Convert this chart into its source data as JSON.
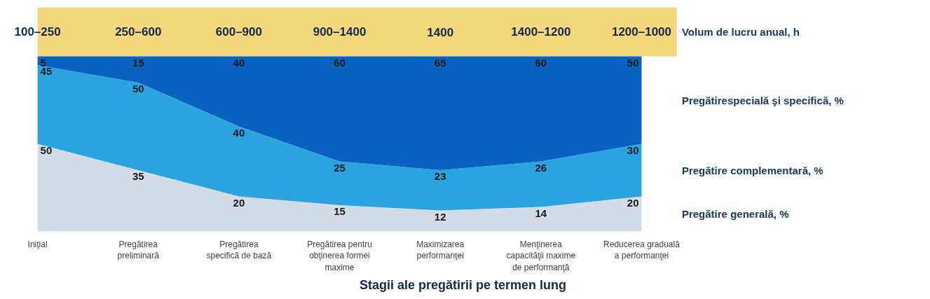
{
  "chart_data": {
    "type": "area",
    "stacked": true,
    "data_labels": true,
    "grid": false,
    "tick_labels": "x",
    "xlabel": "Stagii ale pregătirii pe termen lung",
    "categories": [
      "Iniţial",
      "Pregătirea preliminară",
      "Pregătirea specifică de bază",
      "Pregătirea pentru obţinerea formei maxime",
      "Maximizarea performanţei",
      "Menţinerea capacităţii maxime de performanţă",
      "Reducerea graduală a performanţei"
    ],
    "series": [
      {
        "name": "Pregătire generală, %",
        "color": "#d3dce6",
        "values": [
          50,
          35,
          20,
          15,
          12,
          14,
          20
        ]
      },
      {
        "name": "Pregătire complementară, %",
        "color": "#2aa3de",
        "values": [
          45,
          50,
          40,
          25,
          23,
          26,
          30
        ]
      },
      {
        "name": "Pregătirespecială şi specifică, %",
        "color": "#0b63c1",
        "values": [
          5,
          15,
          40,
          60,
          65,
          60,
          50
        ]
      }
    ],
    "bands": [
      {
        "axis": "y",
        "from": 100,
        "to": 128,
        "label": "Volum de lucru anual, h",
        "color": "#f4d77c"
      }
    ],
    "annotations": [
      "100–250",
      "250–600",
      "600–900",
      "900–1400",
      "1400",
      "1400–1200",
      "1200–1000"
    ]
  }
}
